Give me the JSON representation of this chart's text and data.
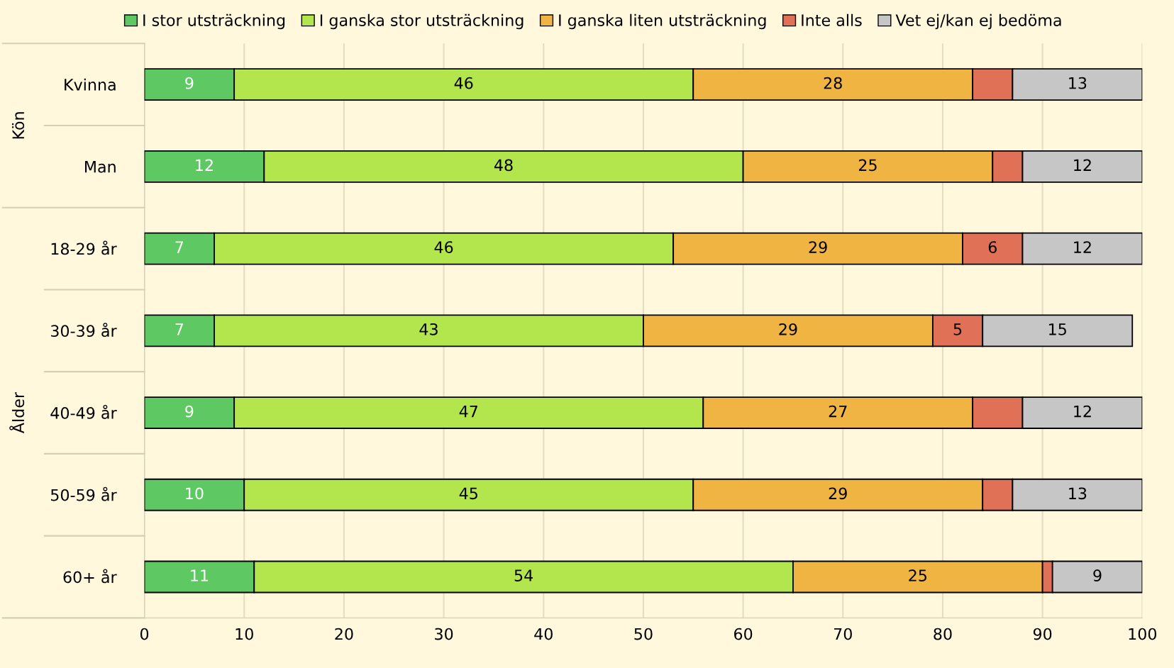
{
  "chart_data": {
    "type": "bar",
    "orientation": "horizontal",
    "stacked": true,
    "categories": [
      "Kvinna",
      "Man",
      "18-29 år",
      "30-39 år",
      "40-49 år",
      "50-59 år",
      "60+ år"
    ],
    "series": [
      {
        "name": "I stor utsträckning",
        "color": "#5ec962",
        "values": [
          9,
          12,
          7,
          7,
          9,
          10,
          11
        ],
        "value_labels": [
          "9",
          "12",
          "7",
          "7",
          "9",
          "10",
          "11"
        ]
      },
      {
        "name": "I ganska stor utsträckning",
        "color": "#b3e64d",
        "values": [
          46,
          48,
          46,
          43,
          47,
          45,
          54
        ],
        "value_labels": [
          "46",
          "48",
          "46",
          "43",
          "47",
          "45",
          "54"
        ]
      },
      {
        "name": "I ganska liten utsträckning",
        "color": "#efb442",
        "values": [
          28,
          25,
          29,
          29,
          27,
          29,
          25
        ],
        "value_labels": [
          "28",
          "25",
          "29",
          "29",
          "27",
          "29",
          "25"
        ]
      },
      {
        "name": "Inte alls",
        "color": "#e07056",
        "values": [
          4,
          3,
          6,
          5,
          5,
          3,
          1
        ],
        "value_labels": [
          null,
          null,
          "6",
          "5",
          null,
          null,
          null
        ]
      },
      {
        "name": "Vet ej/kan ej bedöma",
        "color": "#c6c6c6",
        "values": [
          13,
          12,
          12,
          15,
          12,
          13,
          9
        ],
        "value_labels": [
          "13",
          "12",
          "12",
          "15",
          "12",
          "13",
          "9"
        ]
      }
    ],
    "xlim": [
      0,
      100
    ],
    "xticks": [
      0,
      10,
      20,
      30,
      40,
      50,
      60,
      70,
      80,
      90,
      100
    ],
    "grid": "x",
    "legend": "top",
    "annotations": [
      "Kön",
      "Ålder"
    ]
  }
}
